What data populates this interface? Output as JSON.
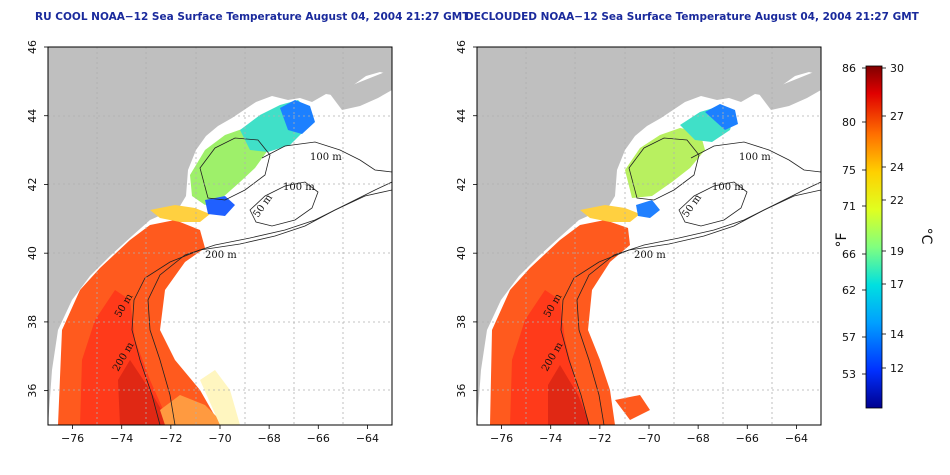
{
  "panels": [
    {
      "title": "RU COOL NOAA−12 Sea Surface Temperature August 04, 2004 21:27 GMT",
      "contour_labels": [
        "100 m",
        "100 m",
        "50 m",
        "200 m",
        "50 m",
        "200 m"
      ]
    },
    {
      "title": "DECLOUDED NOAA−12 Sea Surface Temperature August 04, 2004 21:27 GMT",
      "contour_labels": [
        "100 m",
        "100 m",
        "50 m",
        "200 m",
        "50 m",
        "200 m"
      ]
    }
  ],
  "axes": {
    "lon_ticks": [
      "−76",
      "−74",
      "−72",
      "−70",
      "−68",
      "−66",
      "−64"
    ],
    "lat_ticks": [
      "36",
      "38",
      "40",
      "42",
      "44",
      "46"
    ],
    "lon_range": [
      -77.0,
      -63.0
    ],
    "lat_range": [
      35.0,
      46.0
    ]
  },
  "colorbar": {
    "fahrenheit_ticks": [
      "86",
      "80",
      "75",
      "71",
      "66",
      "62",
      "57",
      "53"
    ],
    "celsius_ticks": [
      "30",
      "27",
      "24",
      "22",
      "19",
      "17",
      "14",
      "12"
    ],
    "fahrenheit_label": "°F",
    "celsius_label": "°C",
    "colors": [
      "#00008f",
      "#0030ff",
      "#00a0ff",
      "#00e0e0",
      "#80ff80",
      "#e0ff20",
      "#ffd000",
      "#ff7000",
      "#e00000",
      "#800000"
    ]
  },
  "colors": {
    "land": "#bfbfbf",
    "title": "#1a2a9c",
    "grid": "#b0b0b0"
  }
}
